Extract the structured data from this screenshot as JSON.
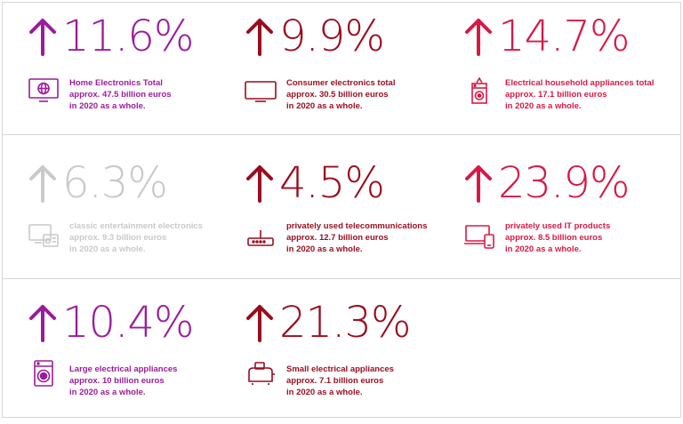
{
  "colors": {
    "purple": "#9b1c9b",
    "darkred": "#9a0c1e",
    "crimson": "#d81845",
    "gray": "#c9c9c9"
  },
  "cards": [
    {
      "percent": "11.6%",
      "color": "#9b1c9b",
      "icon": "tv-globe-icon",
      "line1": "Home Electronics Total",
      "line2": "approx. 47.5 billion euros",
      "line3": "in 2020 as a whole."
    },
    {
      "percent": "9.9%",
      "color": "#9a0c1e",
      "icon": "tv-icon",
      "line1": "Consumer electronics total",
      "line2": "approx. 30.5 billion euros",
      "line3": "in 2020 as a whole."
    },
    {
      "percent": "14.7%",
      "color": "#d81845",
      "icon": "appliance-icon",
      "line1": "Electrical household appliances total",
      "line2": "approx. 17.1 billion euros",
      "line3": "in 2020 as a whole."
    },
    {
      "percent": "6.3%",
      "color": "#c9c9c9",
      "icon": "tv-radio-icon",
      "line1": "classic entertainment electronics",
      "line2": "approx. 9.3 billion euros",
      "line3": "in 2020 as a whole."
    },
    {
      "percent": "4.5%",
      "color": "#9a0c1e",
      "icon": "router-icon",
      "line1": "privately used telecommunications",
      "line2": "approx. 12.7 billion euros",
      "line3": "in 2020 as a whole."
    },
    {
      "percent": "23.9%",
      "color": "#d81845",
      "icon": "laptop-phone-icon",
      "line1": "privately used IT products",
      "line2": "approx. 8.5 billion euros",
      "line3": "in 2020 as a whole."
    },
    {
      "percent": "10.4%",
      "color": "#9b1c9b",
      "icon": "washing-machine-icon",
      "line1": "Large electrical appliances",
      "line2": "approx. 10 billion euros",
      "line3": "in 2020 as a whole."
    },
    {
      "percent": "21.3%",
      "color": "#9a0c1e",
      "icon": "toaster-icon",
      "line1": "Small electrical appliances",
      "line2": "approx. 7.1 billion euros",
      "line3": "in 2020 as a whole."
    }
  ]
}
